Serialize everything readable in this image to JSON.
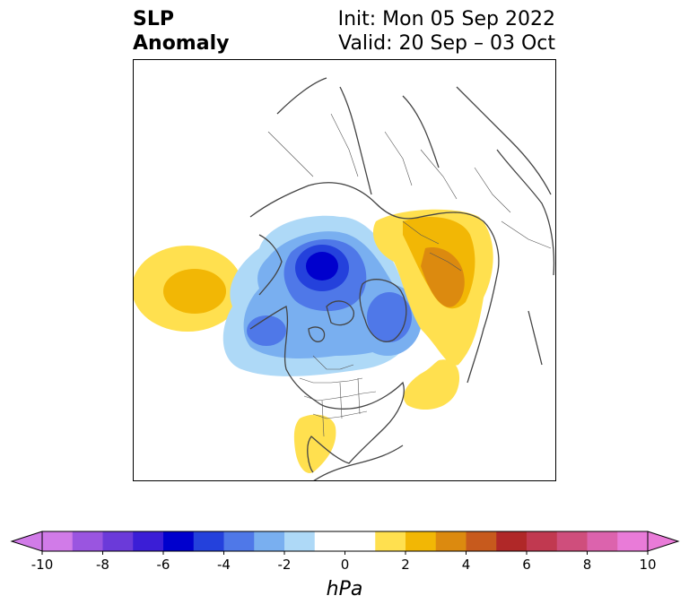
{
  "title": {
    "left_line1": "SLP",
    "left_line2": "Anomaly",
    "right_line1": "Init: Mon 05 Sep 2022",
    "right_line2": "Valid: 20 Sep – 03 Oct"
  },
  "colorbar": {
    "ticks": [
      "-10",
      "-8",
      "-6",
      "-4",
      "-2",
      "0",
      "2",
      "4",
      "6",
      "8",
      "10"
    ],
    "unit": "hPa",
    "min": -10,
    "max": 10,
    "step": 1,
    "extend": "both",
    "colors": [
      "#d17be8",
      "#9a55e0",
      "#6b3ad9",
      "#3b1ed6",
      "#0000cd",
      "#2441dc",
      "#4f78e8",
      "#79aff0",
      "#aed9f7",
      "#ffffff",
      "#ffffff",
      "#ffe04f",
      "#f2b705",
      "#dc8a0f",
      "#c75a1d",
      "#b02828",
      "#c13950",
      "#cf4e7c",
      "#dc63ad",
      "#e97bd8"
    ],
    "extend_low_color": "#d17be8",
    "extend_high_color": "#e97bd8"
  },
  "map": {
    "projection": "polar-stereographic-north",
    "anomalies": [
      {
        "sign": "positive",
        "peak_hPa": 3,
        "region": "North Pacific west of Canada"
      },
      {
        "sign": "negative",
        "peak_hPa": -6,
        "region": "Bering Strait / East Siberian Sea"
      },
      {
        "sign": "negative",
        "peak_hPa": -4,
        "region": "Greenland / Baffin Bay"
      },
      {
        "sign": "negative",
        "peak_hPa": -4,
        "region": "Gulf of Alaska"
      },
      {
        "sign": "positive",
        "peak_hPa": 4,
        "region": "Scandinavia / Western Russia"
      },
      {
        "sign": "positive",
        "peak_hPa": 1,
        "region": "Mid North Atlantic"
      },
      {
        "sign": "positive",
        "peak_hPa": 1,
        "region": "Texas / Northern Mexico"
      }
    ]
  }
}
